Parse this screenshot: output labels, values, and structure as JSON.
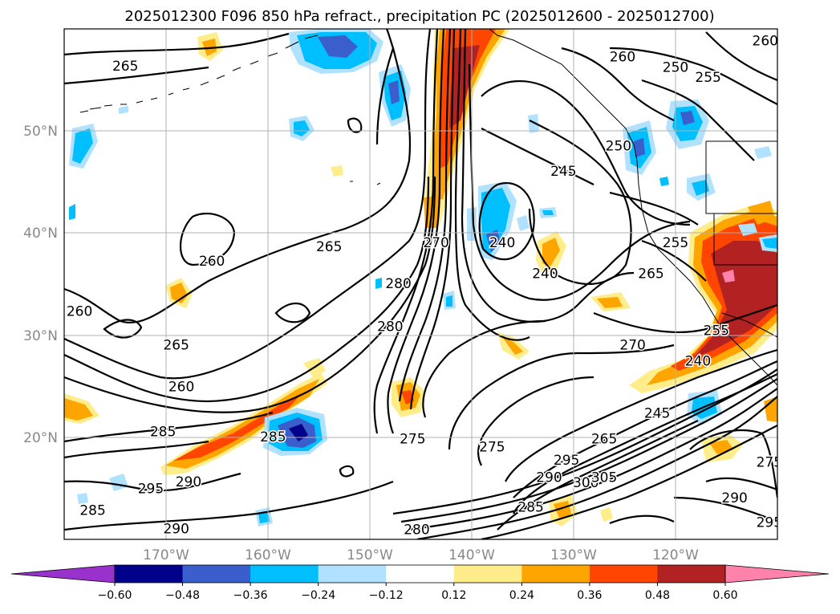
{
  "title": "2025012300 F096 850 hPa refract., precipitation PC (2025012600 - 2025012700)",
  "map": {
    "lon_range": [
      -180,
      -110
    ],
    "lat_range": [
      10,
      60
    ],
    "lon_ticks": [
      "170°W",
      "160°W",
      "150°W",
      "140°W",
      "130°W",
      "120°W"
    ],
    "lat_ticks": [
      "20°N",
      "30°N",
      "40°N",
      "50°N"
    ]
  },
  "contour_labels": [
    {
      "text": "265",
      "lon": -174,
      "lat": 56.3
    },
    {
      "text": "260",
      "lon": -165.5,
      "lat": 37.2
    },
    {
      "text": "265",
      "lon": -154,
      "lat": 38.6
    },
    {
      "text": "260",
      "lon": -178.5,
      "lat": 32.3
    },
    {
      "text": "265",
      "lon": -169,
      "lat": 29.0
    },
    {
      "text": "260",
      "lon": -168.5,
      "lat": 24.9
    },
    {
      "text": "285",
      "lon": -170.3,
      "lat": 20.5
    },
    {
      "text": "285",
      "lon": -159.5,
      "lat": 20.0
    },
    {
      "text": "295",
      "lon": -171.5,
      "lat": 14.9
    },
    {
      "text": "290",
      "lon": -167.8,
      "lat": 15.6
    },
    {
      "text": "285",
      "lon": -177.2,
      "lat": 12.8
    },
    {
      "text": "290",
      "lon": -169.0,
      "lat": 11.0
    },
    {
      "text": "280",
      "lon": -147.2,
      "lat": 35.0
    },
    {
      "text": "280",
      "lon": -148.0,
      "lat": 30.8
    },
    {
      "text": "270",
      "lon": -143.5,
      "lat": 39.0
    },
    {
      "text": "275",
      "lon": -145.8,
      "lat": 19.8
    },
    {
      "text": "275",
      "lon": -138.0,
      "lat": 19.0
    },
    {
      "text": "280",
      "lon": -145.4,
      "lat": 10.9
    },
    {
      "text": "240",
      "lon": -137.0,
      "lat": 39.0
    },
    {
      "text": "240",
      "lon": -132.8,
      "lat": 36.0
    },
    {
      "text": "245",
      "lon": -131.0,
      "lat": 46.0
    },
    {
      "text": "250",
      "lon": -125.6,
      "lat": 48.5
    },
    {
      "text": "260",
      "lon": -125.2,
      "lat": 57.2
    },
    {
      "text": "250",
      "lon": -120.0,
      "lat": 56.2
    },
    {
      "text": "255",
      "lon": -116.8,
      "lat": 55.2
    },
    {
      "text": "255",
      "lon": -120.0,
      "lat": 39.0
    },
    {
      "text": "265",
      "lon": -122.4,
      "lat": 36.0
    },
    {
      "text": "270",
      "lon": -124.2,
      "lat": 29.0
    },
    {
      "text": "240",
      "lon": -117.8,
      "lat": 27.4
    },
    {
      "text": "245",
      "lon": -121.8,
      "lat": 22.3
    },
    {
      "text": "255",
      "lon": -116.0,
      "lat": 30.4
    },
    {
      "text": "290",
      "lon": -114.2,
      "lat": 14.0
    },
    {
      "text": "295",
      "lon": -110.8,
      "lat": 11.6
    },
    {
      "text": "275",
      "lon": -110.8,
      "lat": 17.5
    },
    {
      "text": "285",
      "lon": -134.2,
      "lat": 13.1
    },
    {
      "text": "290",
      "lon": -132.4,
      "lat": 16.0
    },
    {
      "text": "295",
      "lon": -130.7,
      "lat": 17.7
    },
    {
      "text": "300",
      "lon": -128.8,
      "lat": 15.5
    },
    {
      "text": "305",
      "lon": -127.0,
      "lat": 16.0
    },
    {
      "text": "265",
      "lon": -127.0,
      "lat": 19.8
    },
    {
      "text": "260",
      "lon": -111.2,
      "lat": 58.8
    }
  ],
  "colorbar": {
    "ticks": [
      "−0.60",
      "−0.48",
      "−0.36",
      "−0.24",
      "−0.12",
      "0.12",
      "0.24",
      "0.36",
      "0.48",
      "0.60"
    ],
    "colors": [
      "#9932CC",
      "#00008B",
      "#3A5FCD",
      "#00BFFF",
      "#B0E2FF",
      "#FFFFFF",
      "#FFEC8B",
      "#FFA500",
      "#FF4500",
      "#B22222",
      "#FF82AB"
    ]
  }
}
